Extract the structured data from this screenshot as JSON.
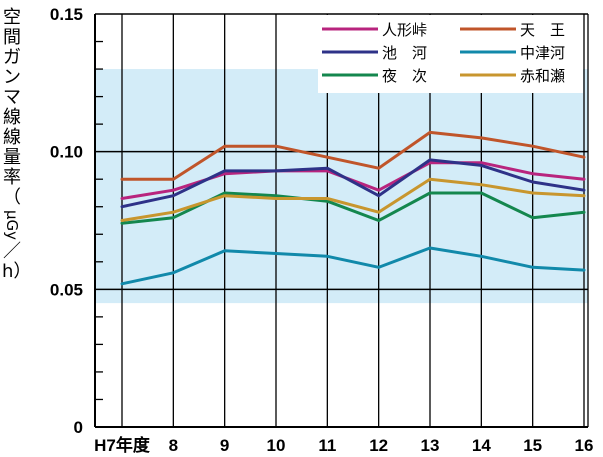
{
  "chart_data": {
    "type": "line",
    "ylabel_top": "空間ガンマ線線量率（",
    "ylabel_unit": "μGy",
    "ylabel_bottom": "／h）",
    "ylim": [
      0,
      0.15
    ],
    "yticks": [
      {
        "value": 0,
        "label": "0"
      },
      {
        "value": 0.05,
        "label": "0.05"
      },
      {
        "value": 0.1,
        "label": "0.10"
      },
      {
        "value": 0.15,
        "label": "0.15"
      }
    ],
    "categories": [
      "H7年度",
      "8",
      "9",
      "10",
      "11",
      "12",
      "13",
      "14",
      "15",
      "16"
    ],
    "band": {
      "from": 0.045,
      "to": 0.13,
      "color": "#d3ecf8"
    },
    "grid": true,
    "legend_position": "top-right",
    "series": [
      {
        "name": "人形峠",
        "color": "#b8247e",
        "values": [
          0.083,
          0.086,
          0.092,
          0.093,
          0.093,
          0.086,
          0.096,
          0.096,
          0.092,
          0.09
        ]
      },
      {
        "name": "天　王",
        "color": "#c0552a",
        "values": [
          0.09,
          0.09,
          0.102,
          0.102,
          0.098,
          0.094,
          0.107,
          0.105,
          0.102,
          0.098
        ]
      },
      {
        "name": "池　河",
        "color": "#2e3288",
        "values": [
          0.08,
          0.084,
          0.093,
          0.093,
          0.094,
          0.084,
          0.097,
          0.095,
          0.089,
          0.086
        ]
      },
      {
        "name": "中津河",
        "color": "#1189aa",
        "values": [
          0.052,
          0.056,
          0.064,
          0.063,
          0.062,
          0.058,
          0.065,
          0.062,
          0.058,
          0.057
        ]
      },
      {
        "name": "夜　次",
        "color": "#14874e",
        "values": [
          0.074,
          0.076,
          0.085,
          0.084,
          0.082,
          0.075,
          0.085,
          0.085,
          0.076,
          0.078
        ]
      },
      {
        "name": "赤和瀬",
        "color": "#c8962e",
        "values": [
          0.075,
          0.078,
          0.084,
          0.083,
          0.083,
          0.078,
          0.09,
          0.088,
          0.085,
          0.084
        ]
      }
    ]
  }
}
